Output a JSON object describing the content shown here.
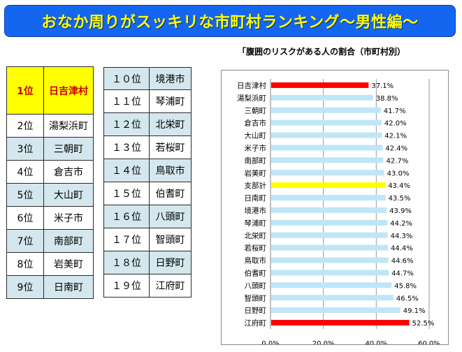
{
  "title": "おなか周りがスッキリな市町村ランキング～男性編～",
  "ranking_left": [
    {
      "rank": "1位",
      "name": "日吉津村"
    },
    {
      "rank": "2位",
      "name": "湯梨浜町"
    },
    {
      "rank": "3位",
      "name": "三朝町"
    },
    {
      "rank": "4位",
      "name": "倉吉市"
    },
    {
      "rank": "5位",
      "name": "大山町"
    },
    {
      "rank": "6位",
      "name": "米子市"
    },
    {
      "rank": "7位",
      "name": "南部町"
    },
    {
      "rank": "8位",
      "name": "岩美町"
    },
    {
      "rank": "9位",
      "name": "日南町"
    }
  ],
  "ranking_right": [
    {
      "rank": "１０位",
      "name": "境港市"
    },
    {
      "rank": "１１位",
      "name": "琴浦町"
    },
    {
      "rank": "１２位",
      "name": "北栄町"
    },
    {
      "rank": "１３位",
      "name": "若桜町"
    },
    {
      "rank": "１４位",
      "name": "鳥取市"
    },
    {
      "rank": "１５位",
      "name": "伯耆町"
    },
    {
      "rank": "１６位",
      "name": "八頭町"
    },
    {
      "rank": "１７位",
      "name": "智頭町"
    },
    {
      "rank": "１８位",
      "name": "日野町"
    },
    {
      "rank": "１９位",
      "name": "江府町"
    }
  ],
  "colors": {
    "highlight": "#ff0000",
    "average": "#ffff00",
    "default": "#bfe6f6",
    "grid": "#999999"
  },
  "chart_data": {
    "type": "bar",
    "orientation": "horizontal",
    "title": "「腹囲のリスクがある人の割合（市町村別）",
    "categories": [
      "日吉津村",
      "湯梨浜町",
      "三朝町",
      "倉吉市",
      "大山町",
      "米子市",
      "南部町",
      "岩美町",
      "支部計",
      "日南町",
      "境港市",
      "琴浦町",
      "北栄町",
      "若桜町",
      "鳥取市",
      "伯耆町",
      "八頭町",
      "智頭町",
      "日野町",
      "江府町"
    ],
    "values": [
      37.1,
      38.8,
      41.7,
      42.0,
      42.1,
      42.4,
      42.7,
      43.0,
      43.4,
      43.5,
      43.9,
      44.2,
      44.3,
      44.4,
      44.6,
      44.7,
      45.8,
      46.5,
      49.1,
      52.5
    ],
    "value_labels": [
      "37.1%",
      "38.8%",
      "41.7%",
      "42.0%",
      "42.1%",
      "42.4%",
      "42.7%",
      "43.0%",
      "43.4%",
      "43.5%",
      "43.9%",
      "44.2%",
      "44.3%",
      "44.4%",
      "44.6%",
      "44.7%",
      "45.8%",
      "46.5%",
      "49.1%",
      "52.5%"
    ],
    "bar_colors": [
      "#ff0000",
      "#bfe6f6",
      "#bfe6f6",
      "#bfe6f6",
      "#bfe6f6",
      "#bfe6f6",
      "#bfe6f6",
      "#bfe6f6",
      "#ffff00",
      "#bfe6f6",
      "#bfe6f6",
      "#bfe6f6",
      "#bfe6f6",
      "#bfe6f6",
      "#bfe6f6",
      "#bfe6f6",
      "#bfe6f6",
      "#bfe6f6",
      "#bfe6f6",
      "#ff0000"
    ],
    "xlim": [
      0,
      60
    ],
    "xticks": [
      0,
      20,
      40,
      60
    ],
    "xtick_labels": [
      "0.0%",
      "20.0%",
      "40.0%",
      "60.0%"
    ],
    "grid": true,
    "legend": "none"
  }
}
